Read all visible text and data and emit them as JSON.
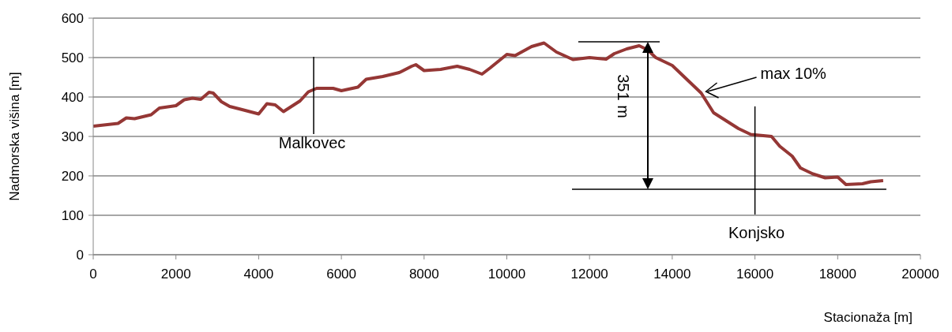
{
  "chart_data": {
    "type": "line",
    "xlabel": "Stacionaža [m]",
    "ylabel": "Nadmorska višina [m]",
    "x": [
      0,
      600,
      800,
      1000,
      1400,
      1600,
      2000,
      2200,
      2400,
      2600,
      2800,
      2900,
      3100,
      3300,
      3600,
      4000,
      4200,
      4400,
      4600,
      5000,
      5200,
      5400,
      5800,
      6000,
      6400,
      6600,
      7000,
      7400,
      7700,
      7800,
      8000,
      8400,
      8800,
      9100,
      9400,
      9600,
      10000,
      10200,
      10600,
      10900,
      11200,
      11600,
      12000,
      12400,
      12600,
      12900,
      13200,
      13400,
      13600,
      14000,
      14400,
      14700,
      15000,
      15300,
      15600,
      15900,
      16200,
      16400,
      16600,
      16900,
      17100,
      17400,
      17700,
      18000,
      18200,
      18600,
      18800,
      19100
    ],
    "series": [
      {
        "color": "#953735",
        "values": [
          326,
          333,
          347,
          345,
          355,
          372,
          378,
          393,
          397,
          394,
          412,
          410,
          388,
          376,
          368,
          357,
          383,
          380,
          363,
          390,
          413,
          422,
          422,
          416,
          425,
          445,
          452,
          462,
          478,
          482,
          467,
          470,
          478,
          470,
          458,
          474,
          508,
          505,
          528,
          537,
          514,
          495,
          500,
          496,
          510,
          522,
          530,
          520,
          500,
          480,
          440,
          410,
          360,
          340,
          320,
          305,
          302,
          300,
          275,
          250,
          220,
          205,
          195,
          197,
          178,
          180,
          185,
          188
        ]
      }
    ],
    "xlim": [
      0,
      20000
    ],
    "xticks": [
      0,
      2000,
      4000,
      6000,
      8000,
      10000,
      12000,
      14000,
      16000,
      18000,
      20000
    ],
    "ylim": [
      0,
      600
    ],
    "yticks": [
      0,
      100,
      200,
      300,
      400,
      500,
      600
    ],
    "grid": "y",
    "annotations": [
      "Malkovec",
      "Konjsko",
      {
        "text": "max 10%",
        "x": 14700,
        "y": 410
      },
      "351 m"
    ]
  }
}
